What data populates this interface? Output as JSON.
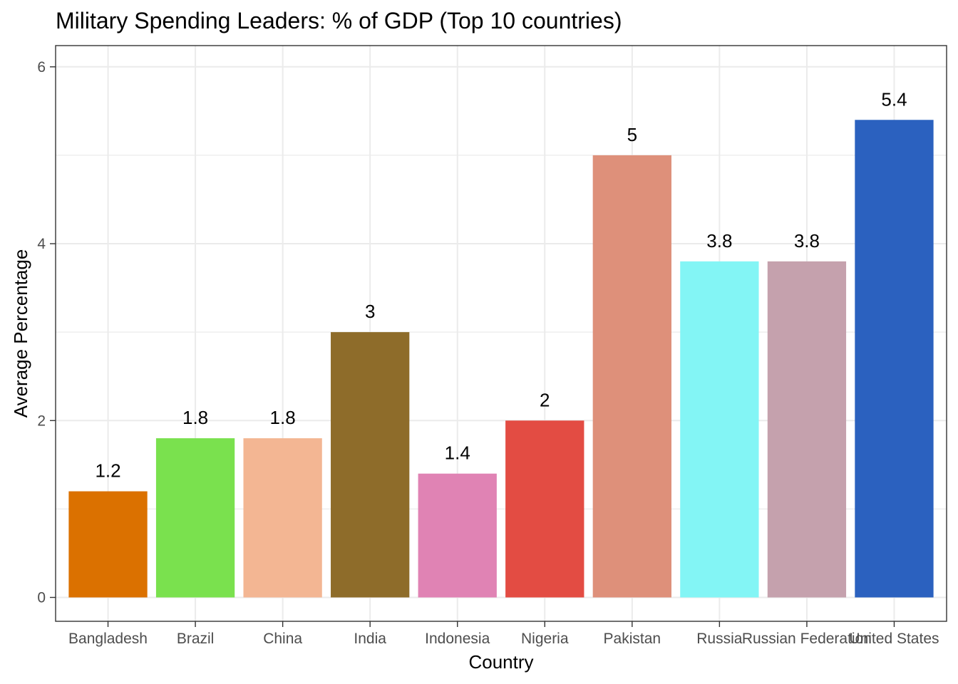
{
  "chart_data": {
    "type": "bar",
    "title": "Military Spending Leaders: % of GDP (Top 10 countries)",
    "xlabel": "Country",
    "ylabel": "Average Percentage",
    "categories": [
      "Bangladesh",
      "Brazil",
      "China",
      "India",
      "Indonesia",
      "Nigeria",
      "Pakistan",
      "Russia",
      "Russian Federation",
      "United States"
    ],
    "values": [
      1.2,
      1.8,
      1.8,
      3.0,
      1.4,
      2.0,
      5.0,
      3.8,
      3.8,
      5.4
    ],
    "data_labels": [
      "1.2",
      "1.8",
      "1.8",
      "3",
      "1.4",
      "2",
      "5",
      "3.8",
      "3.8",
      "5.4"
    ],
    "colors": [
      "#DB7100",
      "#7AE14E",
      "#F3B693",
      "#8E6C2A",
      "#E083B4",
      "#E34C43",
      "#DE907A",
      "#83F5F5",
      "#C5A1AD",
      "#2B61BF"
    ],
    "ylim": [
      -0.27,
      6.24
    ],
    "yticks": [
      0,
      2,
      4,
      6
    ],
    "yticks_minor": [
      1,
      3,
      5
    ],
    "grid": true,
    "legend": "none"
  }
}
